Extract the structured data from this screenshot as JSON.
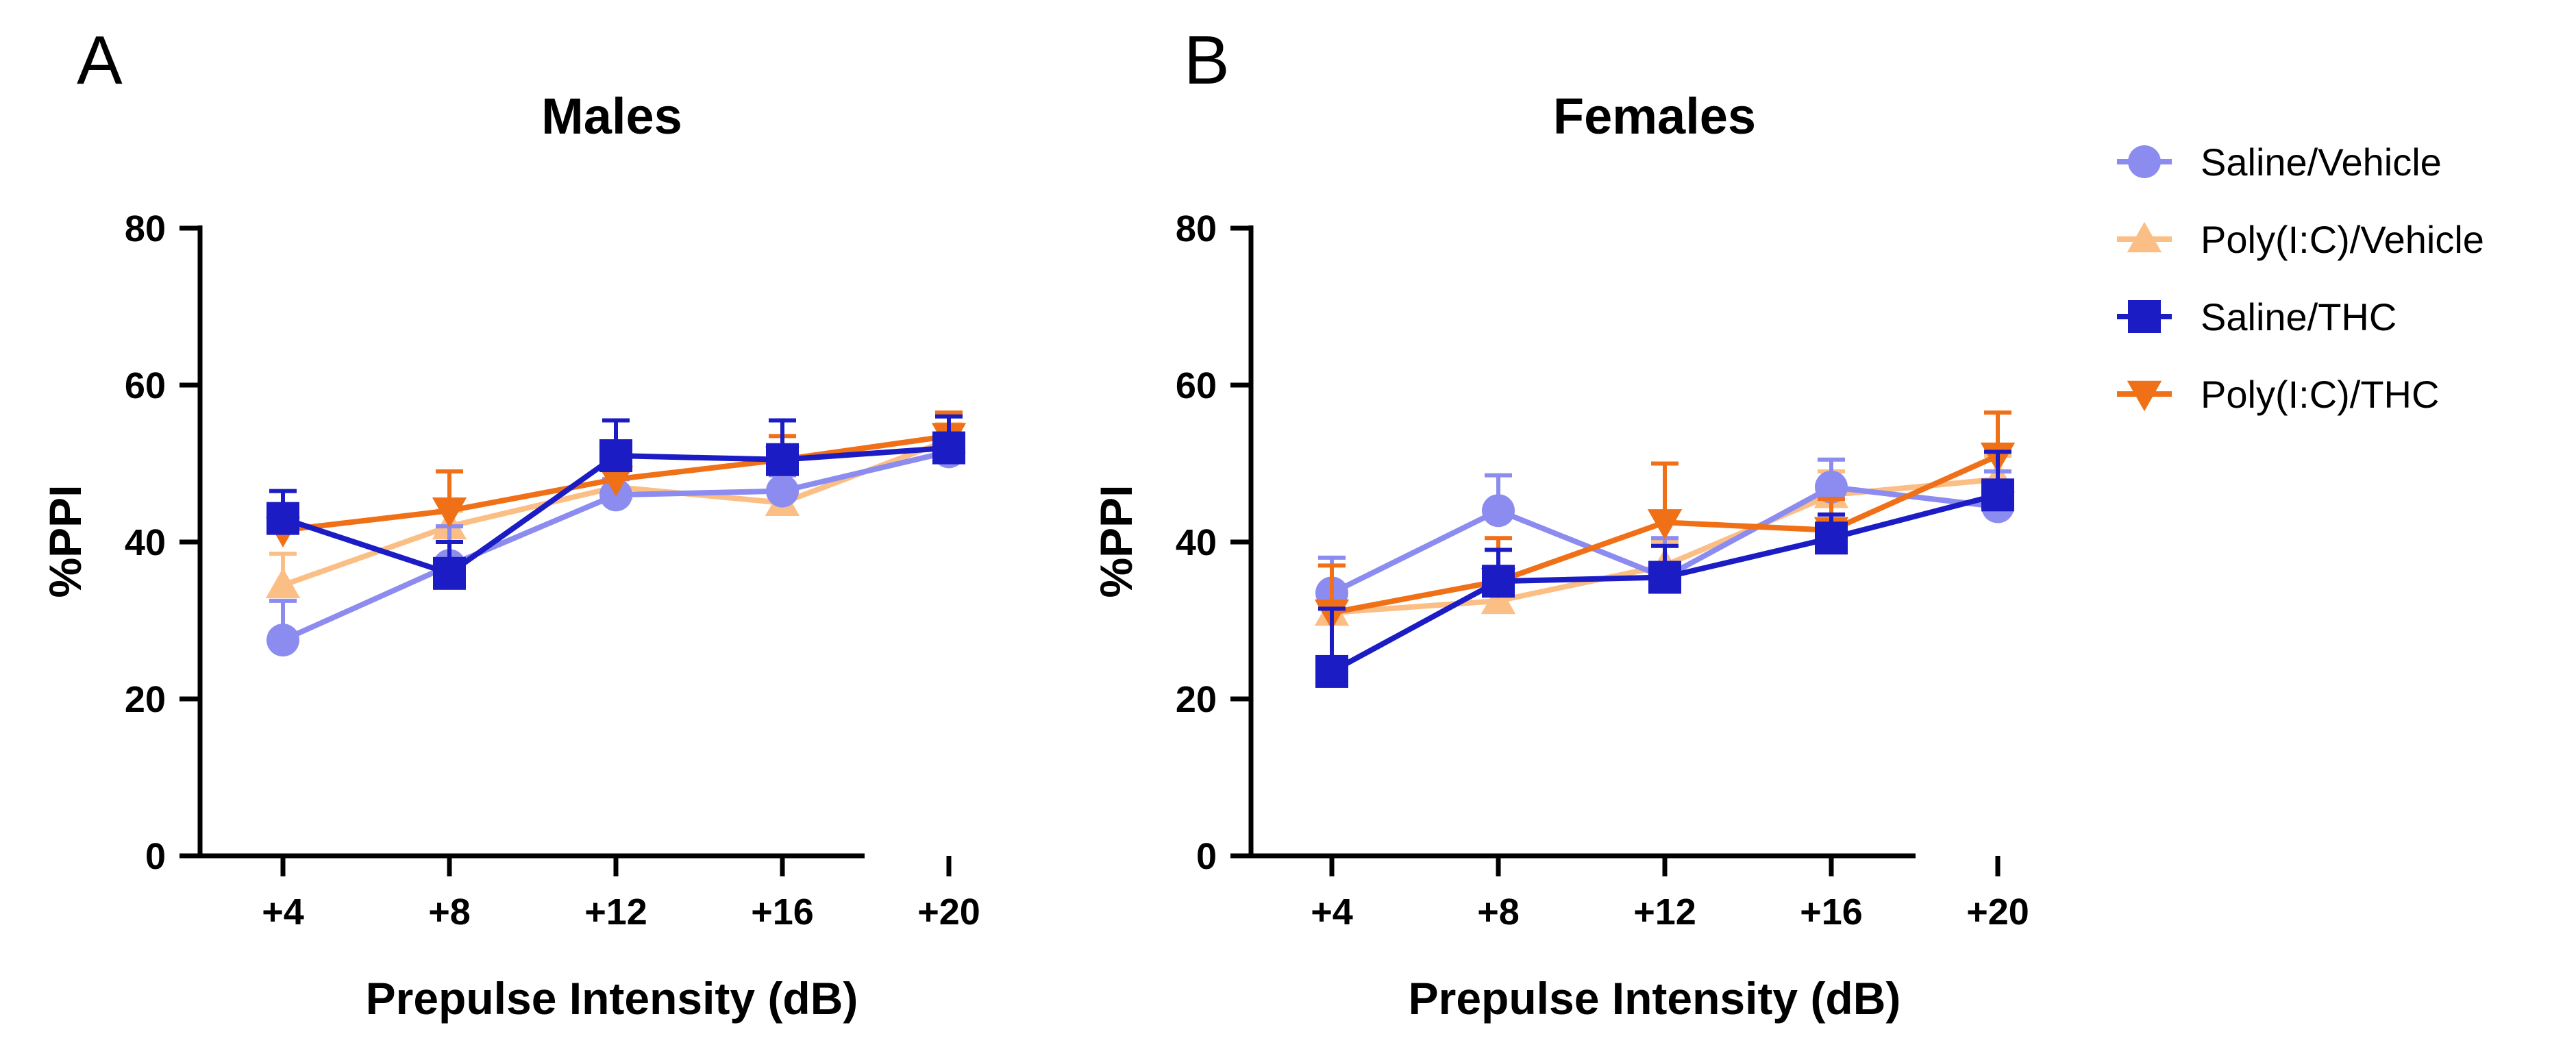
{
  "colors": {
    "saline_vehicle": "#8c8cf0",
    "polyic_vehicle": "#fbbf85",
    "saline_thc": "#1c1cc4",
    "polyic_thc": "#f07018"
  },
  "legend": {
    "entries": [
      {
        "name": "Saline/Vehicle",
        "color": "#8c8cf0",
        "marker": "circle"
      },
      {
        "name": "Poly(I:C)/Vehicle",
        "color": "#fbbf85",
        "marker": "triangle-up"
      },
      {
        "name": "Saline/THC",
        "color": "#1c1cc4",
        "marker": "square"
      },
      {
        "name": "Poly(I:C)/THC",
        "color": "#f07018",
        "marker": "triangle-down"
      }
    ]
  },
  "chart_data": [
    {
      "panel": "A",
      "type": "line",
      "title": "Males",
      "xlabel": "Prepulse Intensity (dB)",
      "ylabel": "%PPI",
      "categories": [
        "+4",
        "+8",
        "+12",
        "+16",
        "+20"
      ],
      "ylim": [
        0,
        80
      ],
      "yticks": [
        "0",
        "20",
        "40",
        "60",
        "80"
      ],
      "series": [
        {
          "name": "Saline/Vehicle",
          "marker": "circle",
          "color": "#8c8cf0",
          "values": [
            27.5,
            37,
            46,
            46.5,
            51.5
          ],
          "errors": [
            5,
            5,
            2,
            2,
            2
          ]
        },
        {
          "name": "Poly(I:C)/Vehicle",
          "marker": "triangle-up",
          "color": "#fbbf85",
          "values": [
            34.5,
            42,
            47,
            45,
            53
          ],
          "errors": [
            4,
            2,
            2,
            2,
            2
          ]
        },
        {
          "name": "Saline/THC",
          "marker": "square",
          "color": "#1c1cc4",
          "values": [
            43,
            36,
            51,
            50.5,
            52
          ],
          "errors": [
            3.5,
            4,
            4.5,
            5,
            4
          ]
        },
        {
          "name": "Poly(I:C)/THC",
          "marker": "triangle-down",
          "color": "#f07018",
          "values": [
            41.5,
            44,
            48,
            50.5,
            53.5
          ],
          "errors": [
            3,
            5,
            3,
            3,
            3
          ]
        }
      ]
    },
    {
      "panel": "B",
      "type": "line",
      "title": "Females",
      "xlabel": "Prepulse Intensity (dB)",
      "ylabel": "%PPI",
      "categories": [
        "+4",
        "+8",
        "+12",
        "+16",
        "+20"
      ],
      "ylim": [
        0,
        80
      ],
      "yticks": [
        "0",
        "20",
        "40",
        "60",
        "80"
      ],
      "series": [
        {
          "name": "Saline/Vehicle",
          "marker": "circle",
          "color": "#8c8cf0",
          "values": [
            33.5,
            44,
            35.5,
            47,
            44.5
          ],
          "errors": [
            4.5,
            4.5,
            5,
            3.5,
            4.5
          ]
        },
        {
          "name": "Poly(I:C)/Vehicle",
          "marker": "triangle-up",
          "color": "#fbbf85",
          "values": [
            31,
            32.5,
            37,
            46,
            48
          ],
          "errors": [
            3,
            3,
            3,
            3,
            3
          ]
        },
        {
          "name": "Saline/THC",
          "marker": "square",
          "color": "#1c1cc4",
          "values": [
            23.5,
            35,
            35.5,
            40.5,
            46
          ],
          "errors": [
            8,
            4,
            4,
            3,
            5.5
          ]
        },
        {
          "name": "Poly(I:C)/THC",
          "marker": "triangle-down",
          "color": "#f07018",
          "values": [
            31,
            35,
            42.5,
            41.5,
            51
          ],
          "errors": [
            6,
            5.5,
            7.5,
            4,
            5.5
          ]
        }
      ]
    }
  ]
}
